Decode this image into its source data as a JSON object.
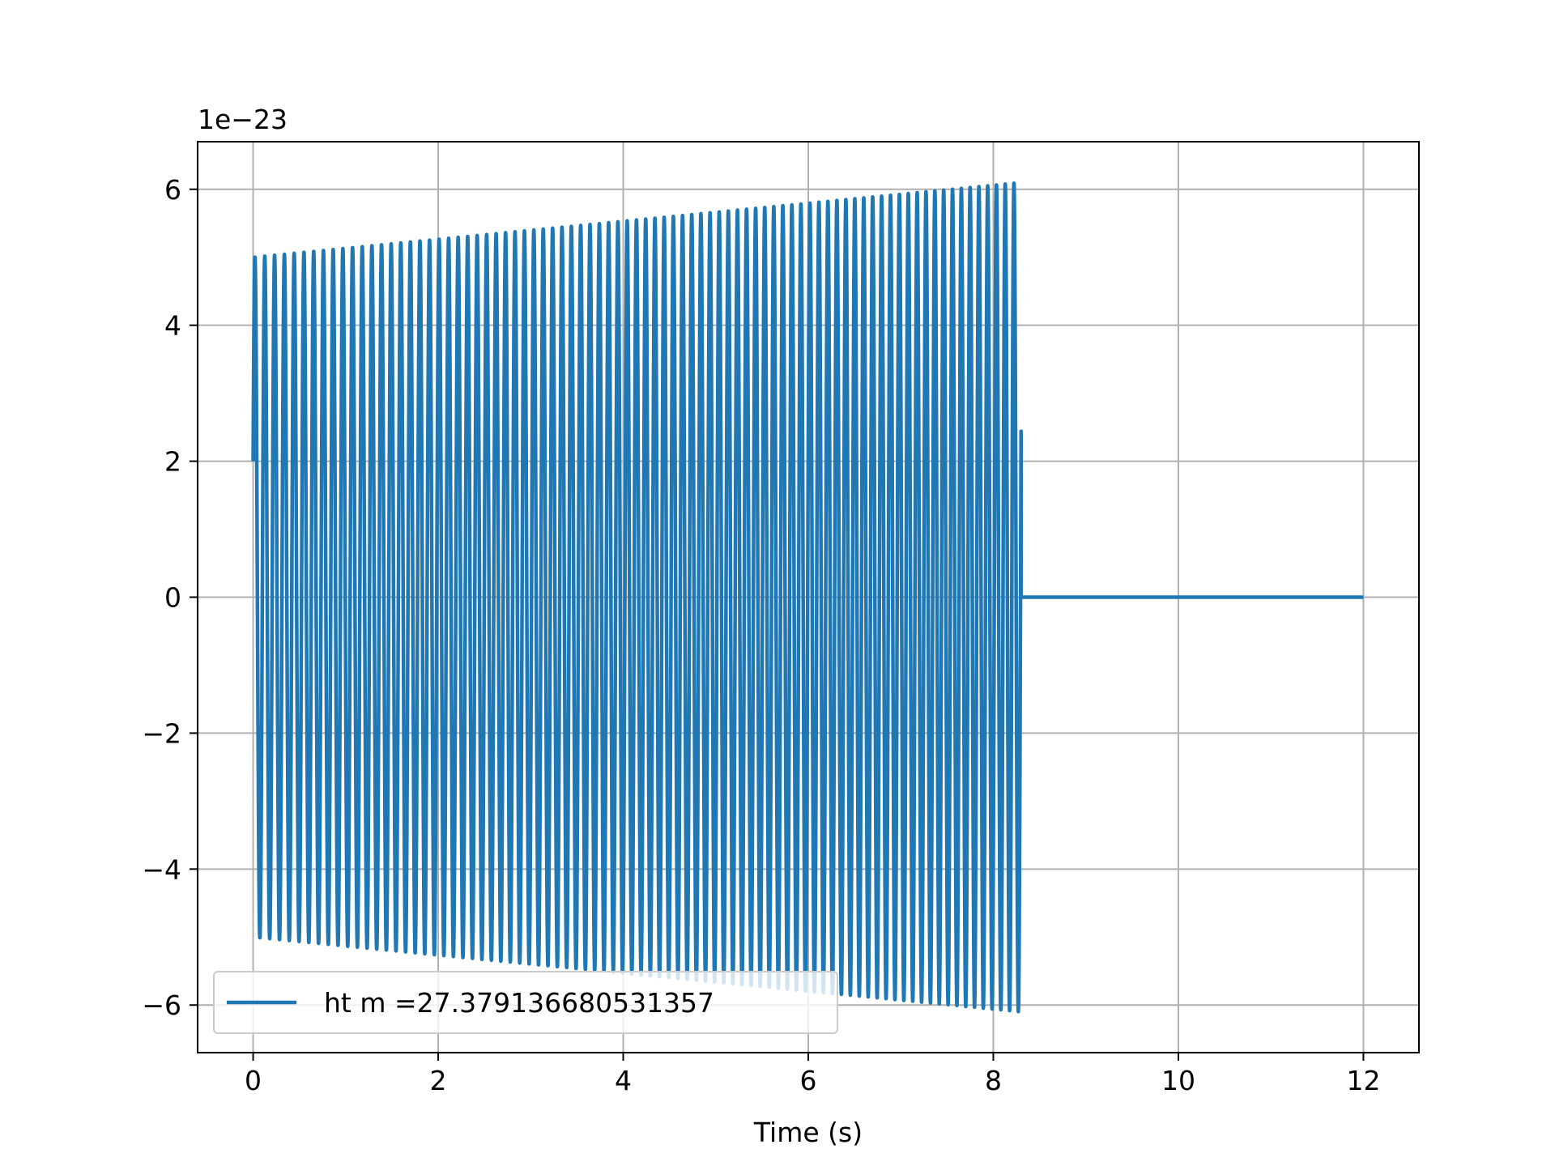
{
  "chart_data": {
    "type": "line",
    "title": "",
    "xlabel": "Time (s)",
    "ylabel": "",
    "y_offset_label": "1e−23",
    "y_scale_exponent": -23,
    "xlim": [
      -0.6,
      12.6
    ],
    "ylim": [
      -6.7,
      6.7
    ],
    "x_ticks": [
      0,
      2,
      4,
      6,
      8,
      10,
      12
    ],
    "x_tick_labels": [
      "0",
      "2",
      "4",
      "6",
      "8",
      "10",
      "12"
    ],
    "y_ticks": [
      -6,
      -4,
      -2,
      0,
      2,
      4,
      6
    ],
    "y_tick_labels": [
      "−6",
      "−4",
      "−2",
      "0",
      "2",
      "4",
      "6"
    ],
    "grid": true,
    "legend_placement": "lower-left",
    "series": [
      {
        "name": "ht m =27.379136680531357",
        "color": "#1f77b4",
        "description_values": {
          "signal_start": 0.0,
          "signal_end": 8.3,
          "zero_until": 12.0,
          "start_value": 2.0,
          "amplitude_start": 5.0,
          "amplitude_end": 6.1,
          "cycles": 83
        }
      }
    ]
  }
}
